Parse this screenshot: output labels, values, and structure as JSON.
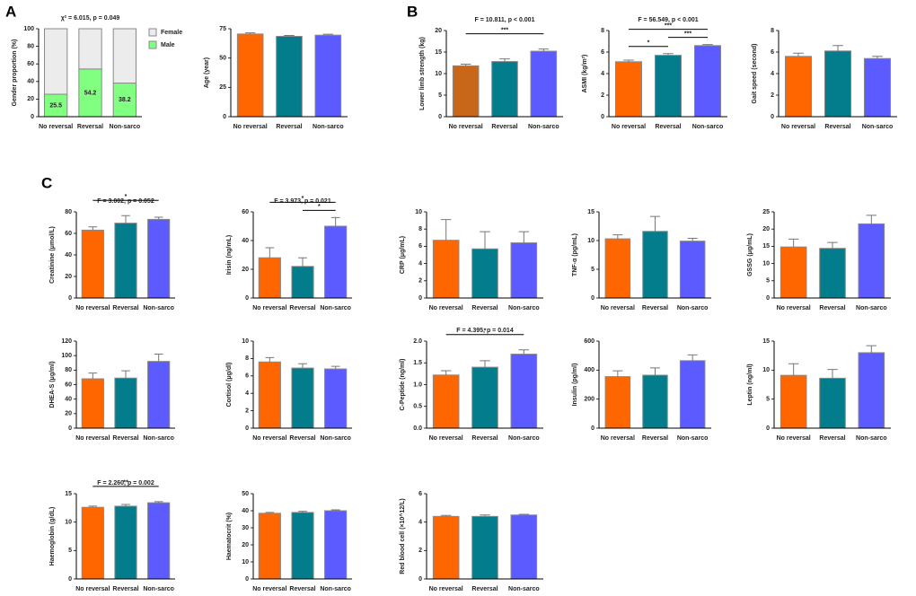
{
  "panel_labels": [
    "A",
    "B",
    "C"
  ],
  "chart_data": [
    {
      "type": "stacked_bar",
      "annotation": "χ² = 6.015, p = 0.049",
      "ylabel": "Gender proportion (%)",
      "categories": [
        "No reversal",
        "Reversal",
        "Non-sarco"
      ],
      "series": [
        {
          "name": "Male",
          "color": "#80ff80",
          "values": [
            25.5,
            54.2,
            38.2
          ],
          "labels": true
        },
        {
          "name": "Female",
          "color": "#ececec",
          "values": [
            74.5,
            45.8,
            61.8
          ]
        }
      ],
      "ylim": [
        0,
        100
      ],
      "yticks": [
        0,
        20,
        40,
        60,
        80,
        100
      ],
      "legend": "right"
    },
    {
      "type": "bar",
      "ylabel": "Age (year)",
      "categories": [
        "No reversal",
        "Reversal",
        "Non-sarco"
      ],
      "values": [
        70.5,
        68.5,
        69.5
      ],
      "errors": [
        1,
        0.8,
        0.8
      ],
      "colors": [
        "#ff6600",
        "#037d8c",
        "#5b5bff"
      ],
      "ylim": [
        0,
        75
      ],
      "yticks": [
        0,
        25,
        50,
        75
      ]
    },
    {
      "type": "bar",
      "annotation": "F = 10.811, p < 0.001",
      "ylabel": "Lower limb strength (kg)",
      "categories": [
        "No reversal",
        "Reversal",
        "Non-sarco"
      ],
      "values": [
        11.8,
        12.8,
        15.2
      ],
      "errors": [
        0.4,
        0.6,
        0.5
      ],
      "colors": [
        "#c8661a",
        "#037d8c",
        "#5b5bff"
      ],
      "ylim": [
        0,
        20
      ],
      "yticks": [
        0,
        5,
        10,
        15,
        20
      ],
      "brackets": [
        {
          "between": [
            "No reversal",
            "Non-sarco"
          ],
          "label": "***"
        }
      ]
    },
    {
      "type": "bar",
      "annotation": "F = 56.549, p < 0.001",
      "ylabel": "ASMI (kg/m²)",
      "categories": [
        "No reversal",
        "Reversal",
        "Non-sarco"
      ],
      "values": [
        5.1,
        5.7,
        6.6
      ],
      "errors": [
        0.15,
        0.15,
        0.1
      ],
      "colors": [
        "#ff6600",
        "#037d8c",
        "#5b5bff"
      ],
      "ylim": [
        0,
        8
      ],
      "yticks": [
        0,
        2,
        4,
        6,
        8
      ],
      "brackets": [
        {
          "between": [
            "No reversal",
            "Reversal"
          ],
          "label": "*"
        },
        {
          "between": [
            "Reversal",
            "Non-sarco"
          ],
          "label": "***"
        },
        {
          "between": [
            "No reversal",
            "Non-sarco"
          ],
          "label": "***"
        }
      ]
    },
    {
      "type": "bar",
      "ylabel": "Gait speed (second)",
      "categories": [
        "No reversal",
        "Reversal",
        "Non-sarco"
      ],
      "values": [
        5.6,
        6.1,
        5.4
      ],
      "errors": [
        0.3,
        0.5,
        0.2
      ],
      "colors": [
        "#ff6600",
        "#037d8c",
        "#5b5bff"
      ],
      "ylim": [
        0,
        8
      ],
      "yticks": [
        0,
        2,
        4,
        6,
        8
      ]
    },
    {
      "type": "bar",
      "annotation": "F = 3.002, p = 0.052",
      "ylabel": "Creatinine (μmol/L)",
      "categories": [
        "No reversal",
        "Reversal",
        "Non-sarco"
      ],
      "values": [
        63,
        69.5,
        73
      ],
      "errors": [
        3,
        7,
        2
      ],
      "colors": [
        "#ff6600",
        "#037d8c",
        "#5b5bff"
      ],
      "ylim": [
        0,
        80
      ],
      "yticks": [
        0,
        20,
        40,
        60,
        80
      ],
      "brackets": [
        {
          "between": [
            "No reversal",
            "Non-sarco"
          ],
          "label": "*"
        }
      ]
    },
    {
      "type": "bar",
      "annotation": "F = 3.973, p = 0.021",
      "ylabel": "Irisin (ng/mL)",
      "categories": [
        "No reversal",
        "Reversal",
        "Non-sarco"
      ],
      "values": [
        28,
        22,
        50
      ],
      "errors": [
        7,
        6,
        6
      ],
      "colors": [
        "#ff6600",
        "#037d8c",
        "#5b5bff"
      ],
      "ylim": [
        0,
        60
      ],
      "yticks": [
        0,
        20,
        40,
        60
      ],
      "brackets": [
        {
          "between": [
            "Reversal",
            "Non-sarco"
          ],
          "label": "*"
        },
        {
          "between": [
            "No reversal",
            "Non-sarco"
          ],
          "label": "*"
        }
      ]
    },
    {
      "type": "bar",
      "ylabel": "CRP (μg/mL)",
      "categories": [
        "No reversal",
        "Reversal",
        "Non-sarco"
      ],
      "values": [
        6.7,
        5.7,
        6.4
      ],
      "errors": [
        2.4,
        2,
        1.3
      ],
      "colors": [
        "#ff6600",
        "#037d8c",
        "#5b5bff"
      ],
      "ylim": [
        0,
        10
      ],
      "yticks": [
        0,
        2,
        4,
        6,
        8,
        10
      ]
    },
    {
      "type": "bar",
      "ylabel": "TNF-α (pg/mL)",
      "categories": [
        "No reversal",
        "Reversal",
        "Non-sarco"
      ],
      "values": [
        10.3,
        11.6,
        9.9
      ],
      "errors": [
        0.7,
        2.6,
        0.5
      ],
      "colors": [
        "#ff6600",
        "#037d8c",
        "#5b5bff"
      ],
      "ylim": [
        0,
        15
      ],
      "yticks": [
        0,
        5,
        10,
        15
      ]
    },
    {
      "type": "bar",
      "ylabel": "GSSG (μg/mL)",
      "categories": [
        "No reversal",
        "Reversal",
        "Non-sarco"
      ],
      "values": [
        14.8,
        14.4,
        21.5
      ],
      "errors": [
        2.3,
        1.7,
        2.5
      ],
      "colors": [
        "#ff6600",
        "#037d8c",
        "#5b5bff"
      ],
      "ylim": [
        0,
        25
      ],
      "yticks": [
        0,
        5,
        10,
        15,
        20,
        25
      ]
    },
    {
      "type": "bar",
      "ylabel": "DHEA-S (μg/ml)",
      "categories": [
        "No reversal",
        "Reversal",
        "Non-sarco"
      ],
      "values": [
        68,
        69,
        92
      ],
      "errors": [
        8,
        10,
        10
      ],
      "colors": [
        "#ff6600",
        "#037d8c",
        "#5b5bff"
      ],
      "ylim": [
        0,
        120
      ],
      "yticks": [
        0,
        20,
        40,
        60,
        80,
        100,
        120
      ]
    },
    {
      "type": "bar",
      "ylabel": "Cortisol (μg/dl)",
      "categories": [
        "No reversal",
        "Reversal",
        "Non-sarco"
      ],
      "values": [
        7.6,
        6.9,
        6.8
      ],
      "errors": [
        0.5,
        0.5,
        0.3
      ],
      "colors": [
        "#ff6600",
        "#037d8c",
        "#5b5bff"
      ],
      "ylim": [
        0,
        10
      ],
      "yticks": [
        0,
        2,
        4,
        6,
        8,
        10
      ]
    },
    {
      "type": "bar",
      "annotation": "F = 4.395, p = 0.014",
      "ylabel": "C-Peptide (ng/ml)",
      "categories": [
        "No reversal",
        "Reversal",
        "Non-sarco"
      ],
      "values": [
        1.22,
        1.4,
        1.7
      ],
      "errors": [
        0.1,
        0.15,
        0.1
      ],
      "colors": [
        "#ff6600",
        "#037d8c",
        "#5b5bff"
      ],
      "ylim": [
        0,
        2
      ],
      "yticks": [
        {
          "value": 0,
          "label": "0.0"
        },
        {
          "value": 0.5,
          "label": "0.5"
        },
        {
          "value": 1,
          "label": "1.0"
        },
        {
          "value": 1.5,
          "label": "1.5"
        },
        {
          "value": 2,
          "label": "2.0"
        }
      ],
      "brackets": [
        {
          "between": [
            "No reversal",
            "Non-sarco"
          ],
          "label": "*"
        }
      ]
    },
    {
      "type": "bar",
      "ylabel": "Insulin (pg/ml)",
      "categories": [
        "No reversal",
        "Reversal",
        "Non-sarco"
      ],
      "values": [
        355,
        365,
        465
      ],
      "errors": [
        40,
        50,
        40
      ],
      "colors": [
        "#ff6600",
        "#037d8c",
        "#5b5bff"
      ],
      "ylim": [
        0,
        600
      ],
      "yticks": [
        0,
        200,
        400,
        600
      ]
    },
    {
      "type": "bar",
      "ylabel": "Leptin (ng/ml)",
      "categories": [
        "No reversal",
        "Reversal",
        "Non-sarco"
      ],
      "values": [
        9.1,
        8.6,
        13
      ],
      "errors": [
        2,
        1.5,
        1.2
      ],
      "colors": [
        "#ff6600",
        "#037d8c",
        "#5b5bff"
      ],
      "ylim": [
        0,
        15
      ],
      "yticks": [
        0,
        5,
        10,
        15
      ]
    },
    {
      "type": "bar",
      "annotation": "F = 2.260, p = 0.002",
      "ylabel": "Haemoglobin (g/dL)",
      "categories": [
        "No reversal",
        "Reversal",
        "Non-sarco"
      ],
      "values": [
        12.6,
        12.8,
        13.4
      ],
      "errors": [
        0.2,
        0.3,
        0.2
      ],
      "colors": [
        "#ff6600",
        "#037d8c",
        "#5b5bff"
      ],
      "ylim": [
        0,
        15
      ],
      "yticks": [
        0,
        5,
        10,
        15
      ],
      "brackets": [
        {
          "between": [
            "No reversal",
            "Non-sarco"
          ],
          "label": "**"
        }
      ]
    },
    {
      "type": "bar",
      "ylabel": "Haematocrit (%)",
      "categories": [
        "No reversal",
        "Reversal",
        "Non-sarco"
      ],
      "values": [
        38.5,
        39,
        40
      ],
      "errors": [
        0.5,
        0.7,
        0.5
      ],
      "colors": [
        "#ff6600",
        "#037d8c",
        "#5b5bff"
      ],
      "ylim": [
        0,
        50
      ],
      "yticks": [
        0,
        10,
        20,
        30,
        40,
        50
      ]
    },
    {
      "type": "bar",
      "ylabel": "Red blood cell (×10^12/L)",
      "categories": [
        "No reversal",
        "Reversal",
        "Non-sarco"
      ],
      "values": [
        4.4,
        4.4,
        4.5
      ],
      "errors": [
        0.07,
        0.1,
        0.05
      ],
      "colors": [
        "#ff6600",
        "#037d8c",
        "#5b5bff"
      ],
      "ylim": [
        0,
        6
      ],
      "yticks": [
        0,
        2,
        4,
        6
      ]
    }
  ]
}
